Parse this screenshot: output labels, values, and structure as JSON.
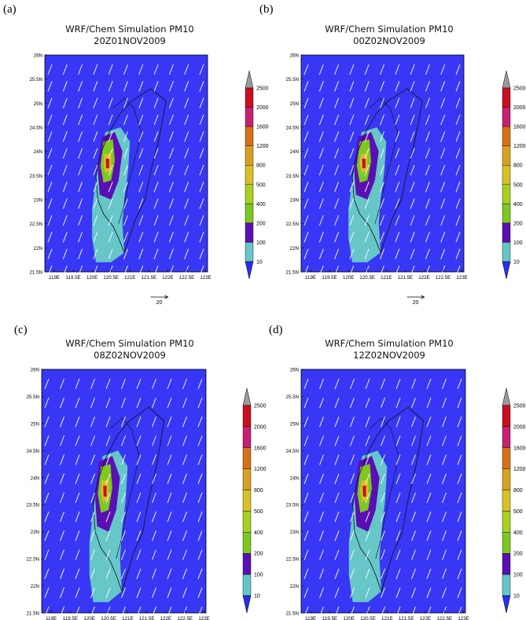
{
  "figure": {
    "title": "WRF/Chem Simulation PM10",
    "colorbar_levels": [
      "10",
      "100",
      "200",
      "400",
      "500",
      "800",
      "1200",
      "1600",
      "2000",
      "2500"
    ],
    "colorbar_colors": [
      "#66c6c8",
      "#5a0fb4",
      "#7ec820",
      "#a8d020",
      "#d8c028",
      "#d8a020",
      "#d87018",
      "#c82070",
      "#c81020"
    ],
    "cap_low_color": "#2b2bf0",
    "cap_high_color": "#9a9a9a",
    "background_color": "#3737f5",
    "x_ticks": [
      "119E",
      "119.5E",
      "120E",
      "120.5E",
      "121E",
      "121.5E",
      "122E",
      "122.5E",
      "123E"
    ],
    "y_ticks": [
      "21.5N",
      "22N",
      "22.5N",
      "23N",
      "23.5N",
      "24N",
      "24.5N",
      "25N",
      "25.5N",
      "26N"
    ],
    "reference_vector": "20"
  },
  "panels": [
    {
      "label": "(a)",
      "time": "20Z01NOV2009"
    },
    {
      "label": "(b)",
      "time": "00Z02NOV2009"
    },
    {
      "label": "(c)",
      "time": "08Z02NOV2009"
    },
    {
      "label": "(d)",
      "time": "12Z02NOV2009"
    }
  ],
  "chart_data": [
    {
      "type": "heatmap",
      "title": "WRF/Chem Simulation PM10",
      "subtitle": "20Z01NOV2009",
      "x_range": [
        118.75,
        123.05
      ],
      "y_range": [
        21.5,
        26
      ],
      "color_levels": [
        10,
        100,
        200,
        400,
        500,
        800,
        1200,
        1600,
        2000,
        2500
      ],
      "peak_region": "western Taiwan plain",
      "reference_vector": 20
    },
    {
      "type": "heatmap",
      "title": "WRF/Chem Simulation PM10",
      "subtitle": "00Z02NOV2009",
      "x_range": [
        118.75,
        123.05
      ],
      "y_range": [
        21.5,
        26
      ],
      "color_levels": [
        10,
        100,
        200,
        400,
        500,
        800,
        1200,
        1600,
        2000,
        2500
      ],
      "peak_region": "western Taiwan plain",
      "reference_vector": 20
    },
    {
      "type": "heatmap",
      "title": "WRF/Chem Simulation PM10",
      "subtitle": "08Z02NOV2009",
      "x_range": [
        118.75,
        123.05
      ],
      "y_range": [
        21.5,
        26
      ],
      "color_levels": [
        10,
        100,
        200,
        400,
        500,
        800,
        1200,
        1600,
        2000,
        2500
      ],
      "peak_region": "western Taiwan plain",
      "reference_vector": 20
    },
    {
      "type": "heatmap",
      "title": "WRF/Chem Simulation PM10",
      "subtitle": "12Z02NOV2009",
      "x_range": [
        118.75,
        123.05
      ],
      "y_range": [
        21.5,
        26
      ],
      "color_levels": [
        10,
        100,
        200,
        400,
        500,
        800,
        1200,
        1600,
        2000,
        2500
      ],
      "peak_region": "western Taiwan plain",
      "reference_vector": 20
    }
  ]
}
